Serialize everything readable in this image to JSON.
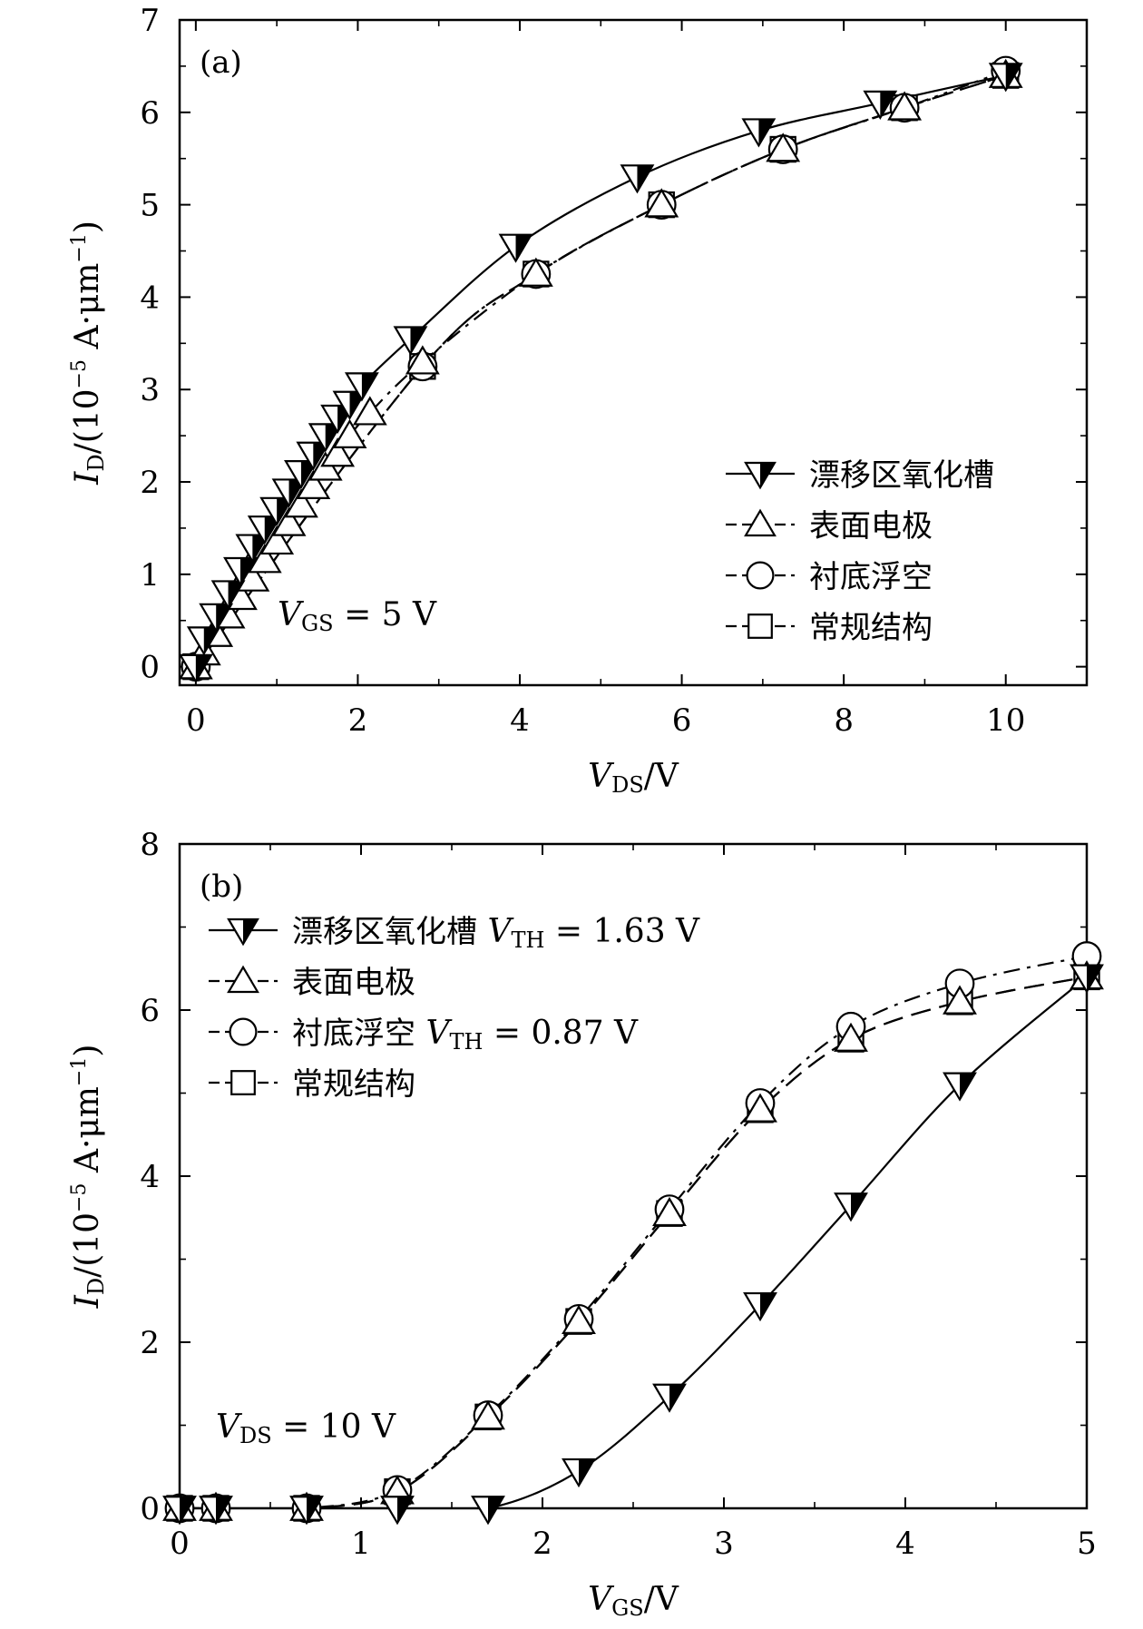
{
  "chart_data": [
    {
      "type": "line",
      "panel_label": "(a)",
      "xlabel_main": "V",
      "xlabel_sub": "DS",
      "xlabel_unit": "/V",
      "ylabel_main": "I",
      "ylabel_sub": "D",
      "ylabel_unit_a": "/(10",
      "ylabel_unit_exp": "−5",
      "ylabel_unit_b": " A·μm",
      "ylabel_unit_exp2": "−1",
      "ylabel_unit_c": ")",
      "xlim": [
        -0.2,
        11
      ],
      "ylim": [
        -0.2,
        7
      ],
      "xticks": [
        0,
        2,
        4,
        6,
        8,
        10
      ],
      "yticks": [
        0,
        1,
        2,
        3,
        4,
        5,
        6,
        7
      ],
      "annotation_main": "V",
      "annotation_sub": "GS",
      "annotation_rest": " = 5 V",
      "legend_position": "bottom-right",
      "series": [
        {
          "name": "漂移区氧化槽",
          "marker": "filled-half-down-triangle",
          "line": "solid",
          "x": [
            0,
            0.1,
            0.25,
            0.4,
            0.55,
            0.7,
            0.85,
            1.0,
            1.15,
            1.3,
            1.45,
            1.6,
            1.75,
            1.9,
            2.05,
            2.65,
            3.95,
            5.45,
            6.95,
            8.45,
            10.0
          ],
          "y": [
            0,
            0.3,
            0.55,
            0.8,
            1.05,
            1.3,
            1.5,
            1.7,
            1.9,
            2.1,
            2.3,
            2.5,
            2.7,
            2.85,
            3.05,
            3.55,
            4.55,
            5.3,
            5.8,
            6.1,
            6.4
          ]
        },
        {
          "name": "表面电极",
          "marker": "open-up-triangle",
          "line": "dash-dot",
          "x": [
            0,
            0.1,
            0.25,
            0.4,
            0.55,
            0.7,
            0.85,
            1.0,
            1.15,
            1.3,
            1.45,
            1.6,
            1.75,
            1.9,
            2.15,
            2.8,
            4.2,
            5.75,
            7.25,
            8.75,
            10.0
          ],
          "y": [
            0,
            0.15,
            0.35,
            0.55,
            0.75,
            0.95,
            1.15,
            1.35,
            1.55,
            1.75,
            1.95,
            2.15,
            2.3,
            2.5,
            2.75,
            3.3,
            4.25,
            5.0,
            5.6,
            6.05,
            6.4
          ]
        },
        {
          "name": "衬底浮空",
          "marker": "open-circle",
          "line": "dash-dot-dot",
          "x": [
            0,
            2.8,
            4.2,
            5.75,
            7.25,
            8.75,
            10.0
          ],
          "y": [
            0,
            3.25,
            4.25,
            5.0,
            5.6,
            6.05,
            6.45
          ]
        },
        {
          "name": "常规结构",
          "marker": "open-square",
          "line": "dashed",
          "x": [
            0,
            2.8,
            4.2,
            5.75,
            7.25,
            8.75,
            10.0
          ],
          "y": [
            0,
            3.25,
            4.25,
            5.0,
            5.6,
            6.05,
            6.4
          ]
        }
      ]
    },
    {
      "type": "line",
      "panel_label": "(b)",
      "xlabel_main": "V",
      "xlabel_sub": "GS",
      "xlabel_unit": "/V",
      "ylabel_main": "I",
      "ylabel_sub": "D",
      "ylabel_unit_a": "/(10",
      "ylabel_unit_exp": "−5",
      "ylabel_unit_b": " A·μm",
      "ylabel_unit_exp2": "−1",
      "ylabel_unit_c": ")",
      "xlim": [
        0,
        5
      ],
      "ylim": [
        0,
        8
      ],
      "xticks": [
        0,
        1,
        2,
        3,
        4,
        5
      ],
      "yticks": [
        0,
        2,
        4,
        6,
        8
      ],
      "annotation_main": "V",
      "annotation_sub": "DS",
      "annotation_rest": " = 10 V",
      "legend_position": "top-left",
      "series": [
        {
          "name": "漂移区氧化槽",
          "name_extra_main": "V",
          "name_extra_sub": "TH",
          "name_extra_rest": " = 1.63 V",
          "marker": "filled-half-down-triangle",
          "line": "solid",
          "x": [
            0,
            0.2,
            0.7,
            1.2,
            1.7,
            2.2,
            2.7,
            3.2,
            3.7,
            4.3,
            5.0
          ],
          "y": [
            0,
            0,
            0,
            0,
            0,
            0.45,
            1.35,
            2.45,
            3.65,
            5.1,
            6.4
          ]
        },
        {
          "name": "表面电极",
          "marker": "open-up-triangle",
          "line": "dashed",
          "x": [
            0,
            0.2,
            0.7,
            1.2,
            1.7,
            2.2,
            2.7,
            3.2,
            3.7,
            4.3,
            5.0
          ],
          "y": [
            0,
            0,
            0,
            0.2,
            1.1,
            2.25,
            3.55,
            4.8,
            5.65,
            6.1,
            6.4
          ]
        },
        {
          "name": "衬底浮空",
          "name_extra_main": "V",
          "name_extra_sub": "TH",
          "name_extra_rest": " = 0.87 V",
          "marker": "open-circle",
          "line": "dash-dot",
          "x": [
            0,
            0.2,
            0.7,
            1.2,
            1.7,
            2.2,
            2.7,
            3.2,
            3.7,
            4.3,
            5.0
          ],
          "y": [
            0,
            0,
            0,
            0.22,
            1.12,
            2.28,
            3.6,
            4.88,
            5.8,
            6.32,
            6.65
          ]
        },
        {
          "name": "常规结构",
          "marker": "open-square",
          "line": "dashed",
          "x": [
            0,
            0.2,
            0.7,
            1.2,
            1.7,
            2.2,
            2.7,
            3.2,
            3.7,
            4.3,
            5.0
          ],
          "y": [
            0,
            0,
            0,
            0.2,
            1.1,
            2.25,
            3.55,
            4.8,
            5.65,
            6.1,
            6.4
          ]
        }
      ]
    }
  ]
}
